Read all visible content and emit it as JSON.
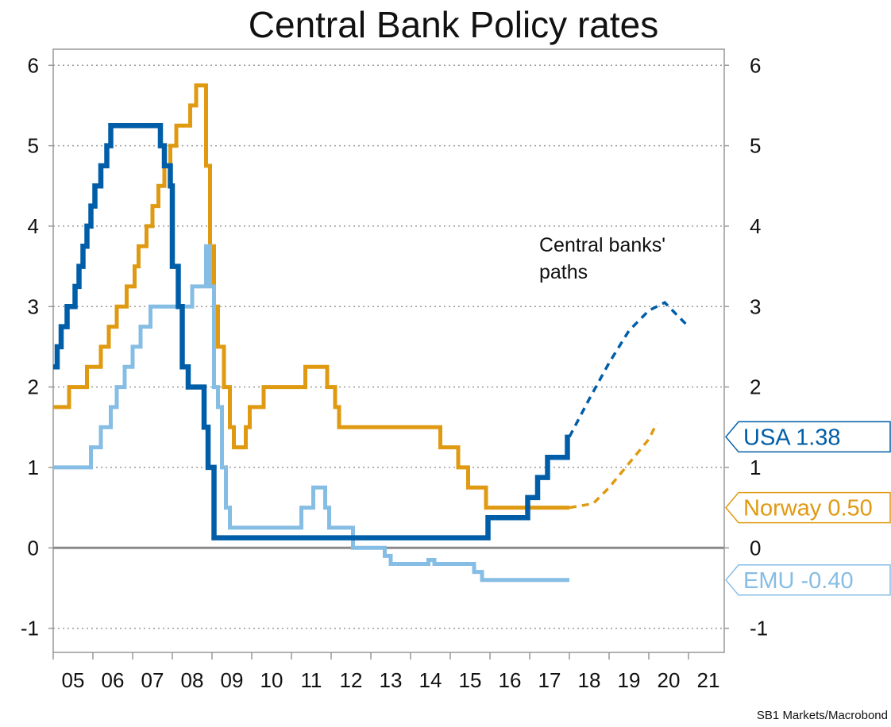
{
  "chart_data": {
    "type": "line",
    "title": "Central Bank Policy rates",
    "source": "SB1 Markets/Macrobond",
    "annotation": [
      "Central banks'",
      "paths"
    ],
    "x_tick_labels": [
      "05",
      "06",
      "07",
      "08",
      "09",
      "10",
      "11",
      "12",
      "13",
      "14",
      "15",
      "16",
      "17",
      "18",
      "19",
      "20",
      "21"
    ],
    "xlim": [
      2005,
      2021.9
    ],
    "ylim": [
      -1.3,
      6.2
    ],
    "y_ticks": [
      -1,
      0,
      1,
      2,
      3,
      4,
      5,
      6
    ],
    "grid": true,
    "series": [
      {
        "id": "norway",
        "color": "#e09a12",
        "end_label": "Norway 0.50",
        "steps": [
          [
            2005.0,
            1.75
          ],
          [
            2005.4,
            2.0
          ],
          [
            2005.85,
            2.25
          ],
          [
            2006.2,
            2.5
          ],
          [
            2006.4,
            2.75
          ],
          [
            2006.6,
            3.0
          ],
          [
            2006.85,
            3.25
          ],
          [
            2007.05,
            3.5
          ],
          [
            2007.15,
            3.75
          ],
          [
            2007.35,
            4.0
          ],
          [
            2007.5,
            4.25
          ],
          [
            2007.65,
            4.5
          ],
          [
            2007.8,
            4.75
          ],
          [
            2007.95,
            5.0
          ],
          [
            2008.1,
            5.25
          ],
          [
            2008.45,
            5.5
          ],
          [
            2008.6,
            5.75
          ],
          [
            2008.85,
            4.75
          ],
          [
            2008.95,
            3.75
          ],
          [
            2009.05,
            3.0
          ],
          [
            2009.15,
            2.5
          ],
          [
            2009.3,
            2.0
          ],
          [
            2009.45,
            1.5
          ],
          [
            2009.55,
            1.25
          ],
          [
            2009.85,
            1.5
          ],
          [
            2009.95,
            1.75
          ],
          [
            2010.3,
            2.0
          ],
          [
            2011.35,
            2.25
          ],
          [
            2011.9,
            2.0
          ],
          [
            2012.1,
            1.75
          ],
          [
            2012.2,
            1.5
          ],
          [
            2014.2,
            1.5
          ],
          [
            2014.75,
            1.25
          ],
          [
            2015.2,
            1.0
          ],
          [
            2015.45,
            0.75
          ],
          [
            2015.9,
            0.5
          ]
        ],
        "end": 2018.0,
        "path": [
          [
            2018.0,
            0.5
          ],
          [
            2018.6,
            0.55
          ],
          [
            2019.0,
            0.75
          ],
          [
            2019.5,
            1.05
          ],
          [
            2020.0,
            1.35
          ],
          [
            2020.2,
            1.55
          ]
        ]
      },
      {
        "id": "emu",
        "color": "#86bde4",
        "end_label": "EMU -0.40",
        "steps": [
          [
            2005.0,
            1.0
          ],
          [
            2005.95,
            1.25
          ],
          [
            2006.2,
            1.5
          ],
          [
            2006.45,
            1.75
          ],
          [
            2006.6,
            2.0
          ],
          [
            2006.8,
            2.25
          ],
          [
            2007.0,
            2.5
          ],
          [
            2007.2,
            2.75
          ],
          [
            2007.45,
            3.0
          ],
          [
            2008.5,
            3.25
          ],
          [
            2008.85,
            3.75
          ],
          [
            2008.95,
            3.25
          ],
          [
            2009.05,
            2.0
          ],
          [
            2009.15,
            1.75
          ],
          [
            2009.25,
            1.0
          ],
          [
            2009.35,
            0.5
          ],
          [
            2009.45,
            0.25
          ],
          [
            2011.25,
            0.5
          ],
          [
            2011.55,
            0.75
          ],
          [
            2011.85,
            0.5
          ],
          [
            2011.95,
            0.25
          ],
          [
            2012.55,
            0.0
          ],
          [
            2013.35,
            -0.1
          ],
          [
            2013.5,
            -0.2
          ],
          [
            2014.45,
            -0.15
          ],
          [
            2014.6,
            -0.2
          ],
          [
            2015.6,
            -0.3
          ],
          [
            2015.8,
            -0.4
          ]
        ],
        "end": 2018.0
      },
      {
        "id": "usa",
        "color": "#005ea8",
        "end_label": "USA 1.38",
        "steps": [
          [
            2005.0,
            2.25
          ],
          [
            2005.1,
            2.5
          ],
          [
            2005.2,
            2.75
          ],
          [
            2005.35,
            3.0
          ],
          [
            2005.55,
            3.25
          ],
          [
            2005.65,
            3.5
          ],
          [
            2005.75,
            3.75
          ],
          [
            2005.85,
            4.0
          ],
          [
            2005.95,
            4.25
          ],
          [
            2006.05,
            4.5
          ],
          [
            2006.2,
            4.75
          ],
          [
            2006.35,
            5.0
          ],
          [
            2006.45,
            5.25
          ],
          [
            2007.7,
            5.0
          ],
          [
            2007.8,
            4.75
          ],
          [
            2007.95,
            4.5
          ],
          [
            2008.0,
            3.5
          ],
          [
            2008.15,
            3.0
          ],
          [
            2008.25,
            2.25
          ],
          [
            2008.4,
            2.0
          ],
          [
            2008.8,
            1.5
          ],
          [
            2008.9,
            1.0
          ],
          [
            2009.05,
            0.125
          ],
          [
            2015.95,
            0.375
          ],
          [
            2016.95,
            0.625
          ],
          [
            2017.2,
            0.875
          ],
          [
            2017.45,
            1.125
          ],
          [
            2017.95,
            1.375
          ]
        ],
        "end": 2018.0,
        "path": [
          [
            2018.0,
            1.38
          ],
          [
            2018.5,
            1.85
          ],
          [
            2019.0,
            2.3
          ],
          [
            2019.5,
            2.7
          ],
          [
            2020.0,
            2.95
          ],
          [
            2020.4,
            3.05
          ],
          [
            2021.0,
            2.75
          ]
        ]
      }
    ]
  }
}
